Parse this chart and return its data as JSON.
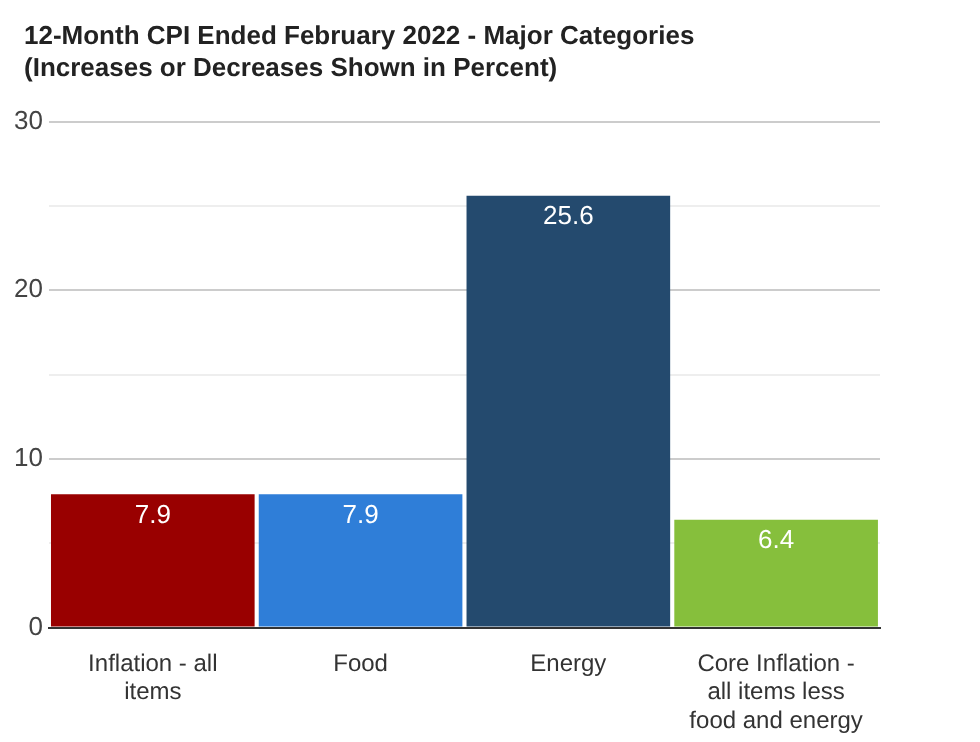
{
  "chart_data": {
    "type": "bar",
    "title": "12-Month CPI Ended February 2022 - Major Categories\n(Increases or Decreases Shown in Percent)",
    "categories": [
      "Inflation - all items",
      "Food",
      "Energy",
      "Core Inflation - all items less food and energy"
    ],
    "values": [
      7.9,
      7.9,
      25.6,
      6.4
    ],
    "colors": [
      "#990000",
      "#2f7ed8",
      "#244a6e",
      "#86bf3c"
    ],
    "ylim": [
      0,
      30
    ],
    "yticks": [
      0,
      {
        "value": 5,
        "label": null
      },
      10,
      {
        "value": 15,
        "label": null
      },
      20,
      {
        "value": 25,
        "label": null
      },
      30
    ],
    "grid": "y",
    "legend": false,
    "data_labels": true
  }
}
